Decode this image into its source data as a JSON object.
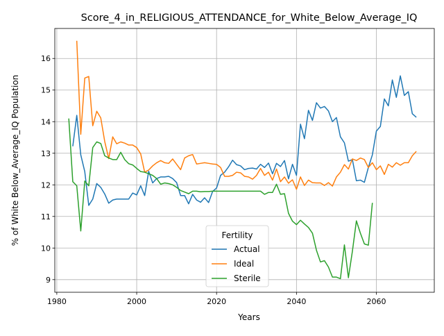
{
  "chart_data": {
    "type": "line",
    "title": "Score_4_in_RELIGIOUS_ATTENDANCE_for_White_Below_Average_IQ",
    "xlabel": "Years",
    "ylabel": "% of White Below_Average_IQ Population",
    "xlim": [
      1979.5,
      2074.5
    ],
    "ylim": [
      8.6,
      16.95
    ],
    "xticks": [
      1980,
      2000,
      2020,
      2040,
      2060
    ],
    "yticks": [
      9,
      10,
      11,
      12,
      13,
      14,
      15,
      16
    ],
    "grid": true,
    "legend": {
      "title": "Fertility",
      "position": "lower center"
    },
    "series": [
      {
        "name": "Actual",
        "color": "#1f77b4",
        "x": [
          1984,
          1985,
          1986,
          1987,
          1988,
          1989,
          1990,
          1991,
          1992,
          1993,
          1994,
          1995,
          1996,
          1997,
          1998,
          1999,
          2000,
          2001,
          2002,
          2003,
          2004,
          2005,
          2006,
          2007,
          2008,
          2009,
          2010,
          2011,
          2012,
          2013,
          2014,
          2015,
          2016,
          2017,
          2018,
          2019,
          2020,
          2021,
          2022,
          2023,
          2024,
          2025,
          2026,
          2027,
          2028,
          2029,
          2030,
          2031,
          2032,
          2033,
          2034,
          2035,
          2036,
          2037,
          2038,
          2039,
          2040,
          2041,
          2042,
          2043,
          2044,
          2045,
          2046,
          2047,
          2048,
          2049,
          2050,
          2051,
          2052,
          2053,
          2054,
          2055,
          2056,
          2057,
          2058,
          2059,
          2060,
          2061,
          2062,
          2063,
          2064,
          2065,
          2066,
          2067,
          2068,
          2069,
          2070
        ],
        "y": [
          13.22,
          14.2,
          12.95,
          12.42,
          11.35,
          11.55,
          12.04,
          11.92,
          11.71,
          11.42,
          11.52,
          11.55,
          11.55,
          11.55,
          11.55,
          11.74,
          11.68,
          11.97,
          11.66,
          12.43,
          12.06,
          12.2,
          12.25,
          12.25,
          12.27,
          12.2,
          12.07,
          11.66,
          11.66,
          11.4,
          11.7,
          11.52,
          11.45,
          11.59,
          11.44,
          11.79,
          11.9,
          12.3,
          12.4,
          12.57,
          12.78,
          12.64,
          12.6,
          12.48,
          12.52,
          12.53,
          12.5,
          12.65,
          12.55,
          12.69,
          12.35,
          12.68,
          12.58,
          12.77,
          12.19,
          12.65,
          12.3,
          13.92,
          13.46,
          14.36,
          14.04,
          14.6,
          14.43,
          14.48,
          14.34,
          14.0,
          14.13,
          13.52,
          13.33,
          12.75,
          12.8,
          12.13,
          12.15,
          12.08,
          12.55,
          12.95,
          13.7,
          13.85,
          14.72,
          14.5,
          15.32,
          14.77,
          15.45,
          14.83,
          14.95,
          14.25,
          14.14
        ]
      },
      {
        "name": "Ideal",
        "color": "#ff7f0e",
        "x": [
          1985,
          1986,
          1987,
          1988,
          1989,
          1990,
          1991,
          1992,
          1993,
          1994,
          1995,
          1996,
          1997,
          1998,
          1999,
          2000,
          2001,
          2002,
          2003,
          2004,
          2005,
          2006,
          2007,
          2008,
          2009,
          2010,
          2011,
          2012,
          2013,
          2014,
          2015,
          2016,
          2017,
          2018,
          2019,
          2020,
          2021,
          2022,
          2023,
          2024,
          2025,
          2026,
          2027,
          2028,
          2029,
          2030,
          2031,
          2032,
          2033,
          2034,
          2035,
          2036,
          2037,
          2038,
          2039,
          2040,
          2041,
          2042,
          2043,
          2044,
          2045,
          2046,
          2047,
          2048,
          2049,
          2050,
          2051,
          2052,
          2053,
          2054,
          2055,
          2056,
          2057,
          2058,
          2059,
          2060,
          2061,
          2062,
          2063,
          2064,
          2065,
          2066,
          2067,
          2068,
          2069,
          2070
        ],
        "y": [
          16.56,
          13.6,
          15.38,
          15.43,
          13.87,
          14.33,
          14.12,
          13.37,
          12.83,
          13.52,
          13.3,
          13.36,
          13.32,
          13.26,
          13.26,
          13.18,
          12.98,
          12.4,
          12.47,
          12.6,
          12.7,
          12.77,
          12.7,
          12.68,
          12.82,
          12.65,
          12.48,
          12.85,
          12.92,
          12.96,
          12.66,
          12.68,
          12.7,
          12.68,
          12.66,
          12.65,
          12.55,
          12.27,
          12.27,
          12.3,
          12.4,
          12.38,
          12.27,
          12.25,
          12.18,
          12.3,
          12.52,
          12.3,
          12.4,
          12.15,
          12.5,
          12.1,
          12.25,
          12.05,
          12.16,
          11.86,
          12.25,
          11.98,
          12.15,
          12.07,
          12.06,
          12.06,
          11.98,
          12.07,
          11.96,
          12.25,
          12.4,
          12.64,
          12.5,
          12.82,
          12.77,
          12.85,
          12.8,
          12.55,
          12.7,
          12.48,
          12.6,
          12.33,
          12.65,
          12.56,
          12.7,
          12.62,
          12.7,
          12.7,
          12.92,
          13.06
        ]
      },
      {
        "name": "Sterile",
        "color": "#2ca02c",
        "x": [
          1983,
          1984,
          1985,
          1986,
          1987,
          1988,
          1989,
          1990,
          1991,
          1992,
          1993,
          1994,
          1995,
          1996,
          1997,
          1998,
          1999,
          2000,
          2001,
          2002,
          2003,
          2004,
          2005,
          2006,
          2007,
          2008,
          2009,
          2010,
          2011,
          2012,
          2013,
          2014,
          2015,
          2016,
          2017,
          2018,
          2019,
          2020,
          2021,
          2022,
          2023,
          2024,
          2025,
          2026,
          2027,
          2028,
          2029,
          2030,
          2031,
          2032,
          2033,
          2034,
          2035,
          2036,
          2037,
          2038,
          2039,
          2040,
          2041,
          2042,
          2043,
          2044,
          2045,
          2046,
          2047,
          2048,
          2049,
          2050,
          2051,
          2052,
          2053,
          2054,
          2055,
          2056,
          2057,
          2058,
          2059
        ],
        "y": [
          14.1,
          12.1,
          11.97,
          10.54,
          12.12,
          11.97,
          13.18,
          13.36,
          13.31,
          12.92,
          12.85,
          12.8,
          12.8,
          13.03,
          12.8,
          12.67,
          12.63,
          12.52,
          12.42,
          12.4,
          12.35,
          12.3,
          12.2,
          12.02,
          12.06,
          12.04,
          12.0,
          11.92,
          11.82,
          11.77,
          11.72,
          11.8,
          11.8,
          11.78,
          11.79,
          11.79,
          11.8,
          11.8,
          11.8,
          11.8,
          11.8,
          11.8,
          11.8,
          11.8,
          11.8,
          11.8,
          11.8,
          11.8,
          11.8,
          11.7,
          11.76,
          11.76,
          12.02,
          11.7,
          11.72,
          11.1,
          10.85,
          10.74,
          10.88,
          10.76,
          10.65,
          10.47,
          9.93,
          9.56,
          9.6,
          9.4,
          9.08,
          9.08,
          9.03,
          10.1,
          9.06,
          9.9,
          10.86,
          10.47,
          10.13,
          10.09,
          11.43
        ]
      }
    ]
  }
}
